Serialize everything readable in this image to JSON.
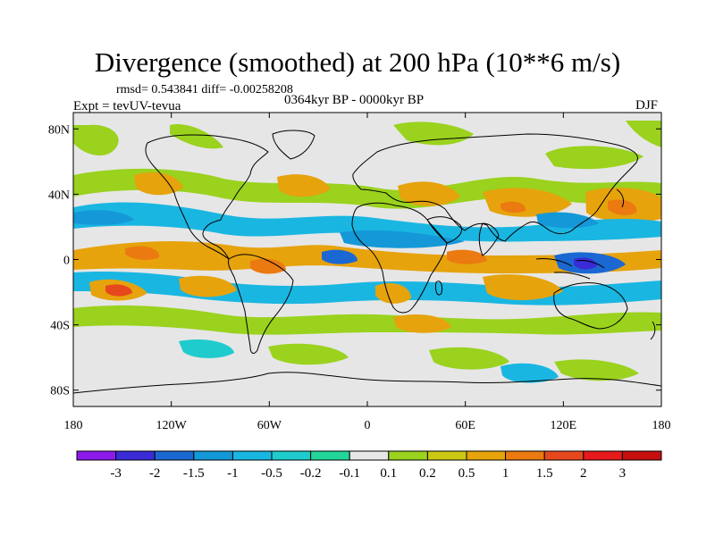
{
  "title": "Divergence (smoothed) at 200 hPa (10**6 m/s)",
  "stats": "rmsd= 0.543841  diff= -0.00258208",
  "experiment": "Expt = tevUV-tevua",
  "period": "0364kyr BP - 0000kyr BP",
  "season": "DJF",
  "lat_ticks": [
    {
      "label": "80N",
      "lat": 80
    },
    {
      "label": "40N",
      "lat": 40
    },
    {
      "label": "0",
      "lat": 0
    },
    {
      "label": "40S",
      "lat": -40
    },
    {
      "label": "80S",
      "lat": -80
    }
  ],
  "lon_ticks": [
    {
      "label": "180",
      "lon": -180
    },
    {
      "label": "120W",
      "lon": -120
    },
    {
      "label": "60W",
      "lon": -60
    },
    {
      "label": "0",
      "lon": 0
    },
    {
      "label": "60E",
      "lon": 60
    },
    {
      "label": "120E",
      "lon": 120
    },
    {
      "label": "180",
      "lon": 180
    }
  ],
  "colorbar": {
    "levels": [
      "-3",
      "-2",
      "-1.5",
      "-1",
      "-0.5",
      "-0.2",
      "-0.1",
      "0.1",
      "0.2",
      "0.5",
      "1",
      "1.5",
      "2",
      "3"
    ],
    "colors": [
      "#8c1aeb",
      "#3a2bd6",
      "#1b68d3",
      "#1498d8",
      "#1ab6e2",
      "#1fcbcd",
      "#22d59a",
      "#e6e6e6",
      "#9ad21e",
      "#cbc813",
      "#e6a30c",
      "#eb7a11",
      "#e6481d",
      "#e61a1a",
      "#c80f0f"
    ]
  },
  "map_colors": {
    "background": "#e6e6e6",
    "coast": "#000000"
  }
}
